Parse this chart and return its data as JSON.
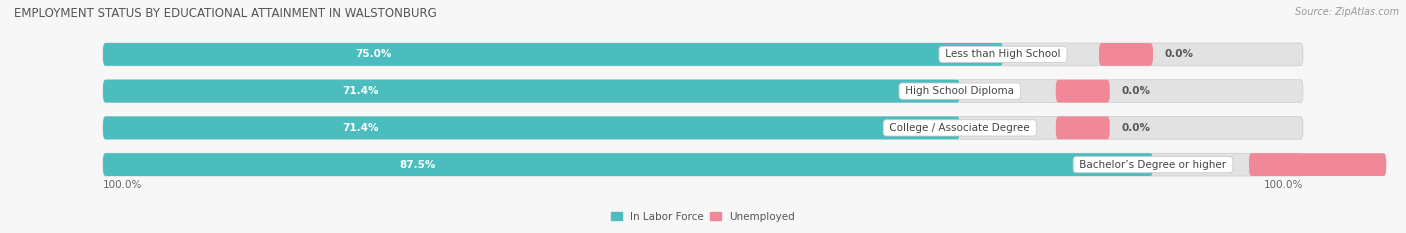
{
  "title": "EMPLOYMENT STATUS BY EDUCATIONAL ATTAINMENT IN WALSTONBURG",
  "source": "Source: ZipAtlas.com",
  "categories": [
    "Less than High School",
    "High School Diploma",
    "College / Associate Degree",
    "Bachelor’s Degree or higher"
  ],
  "labor_force": [
    75.0,
    71.4,
    71.4,
    87.5
  ],
  "unemployed": [
    0.0,
    0.0,
    0.0,
    14.3
  ],
  "labor_force_color": "#4BBDBE",
  "unemployed_color": "#F08898",
  "bar_bg_color": "#E2E2E2",
  "bar_height": 0.62,
  "figsize": [
    14.06,
    2.33
  ],
  "dpi": 100,
  "title_fontsize": 8.5,
  "source_fontsize": 7,
  "value_fontsize": 7.5,
  "label_fontsize": 7.5,
  "legend_fontsize": 7.5,
  "axis_label_left": "100.0%",
  "axis_label_right": "100.0%",
  "bg_color": "#F7F7F7"
}
